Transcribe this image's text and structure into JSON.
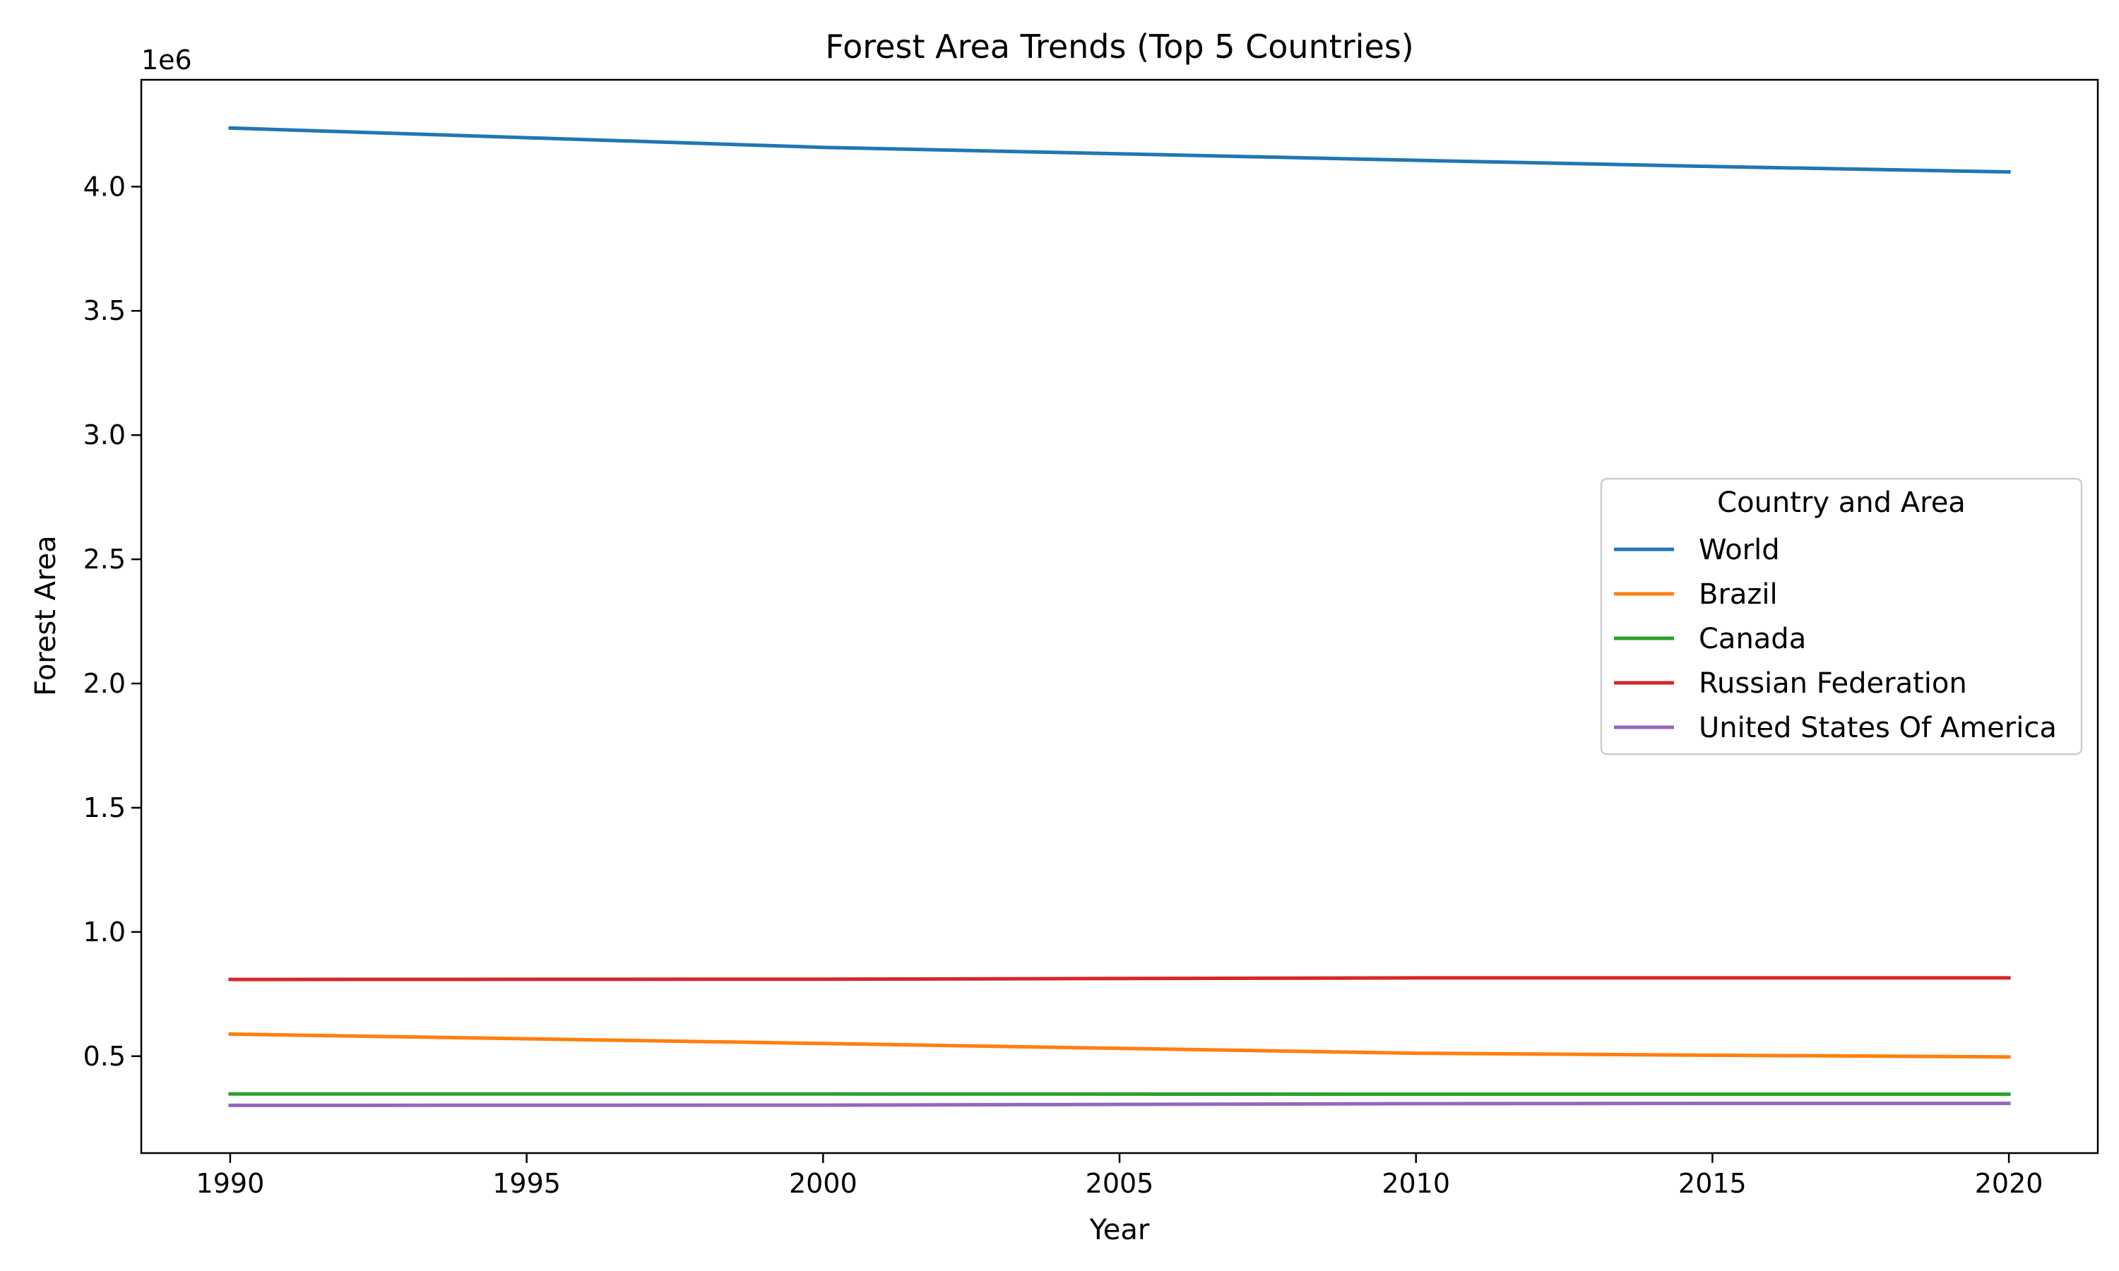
{
  "chart_data": {
    "type": "line",
    "title": "Forest Area Trends (Top 5 Countries)",
    "xlabel": "Year",
    "ylabel": "Forest Area",
    "y_offset_label": "1e6",
    "y_scale_factor": 1000000,
    "xlim": [
      1988.5,
      2021.5
    ],
    "ylim": [
      110000,
      4430000
    ],
    "x_ticks": [
      1990,
      1995,
      2000,
      2005,
      2010,
      2015,
      2020
    ],
    "y_ticks": [
      500000,
      1000000,
      1500000,
      2000000,
      2500000,
      3000000,
      3500000,
      4000000
    ],
    "y_tick_labels": [
      "0.5",
      "1.0",
      "1.5",
      "2.0",
      "2.5",
      "3.0",
      "3.5",
      "4.0"
    ],
    "x": [
      1990,
      2000,
      2010,
      2015,
      2020
    ],
    "legend": {
      "title": "Country and Area",
      "position": "center-right"
    },
    "grid": false,
    "series": [
      {
        "name": "World",
        "color": "#1f77b4",
        "values": [
          4236000,
          4158000,
          4106000,
          4081000,
          4059000
        ]
      },
      {
        "name": "Brazil",
        "color": "#ff7f0e",
        "values": [
          589000,
          551000,
          512000,
          504000,
          497000
        ]
      },
      {
        "name": "Canada",
        "color": "#2ca02c",
        "values": [
          348000,
          348000,
          347000,
          347000,
          347000
        ]
      },
      {
        "name": "Russian Federation",
        "color": "#d62728",
        "values": [
          809000,
          810000,
          815000,
          815000,
          815000
        ]
      },
      {
        "name": "United States Of America",
        "color": "#9467bd",
        "values": [
          302000,
          303000,
          309000,
          310000,
          310000
        ]
      }
    ]
  }
}
